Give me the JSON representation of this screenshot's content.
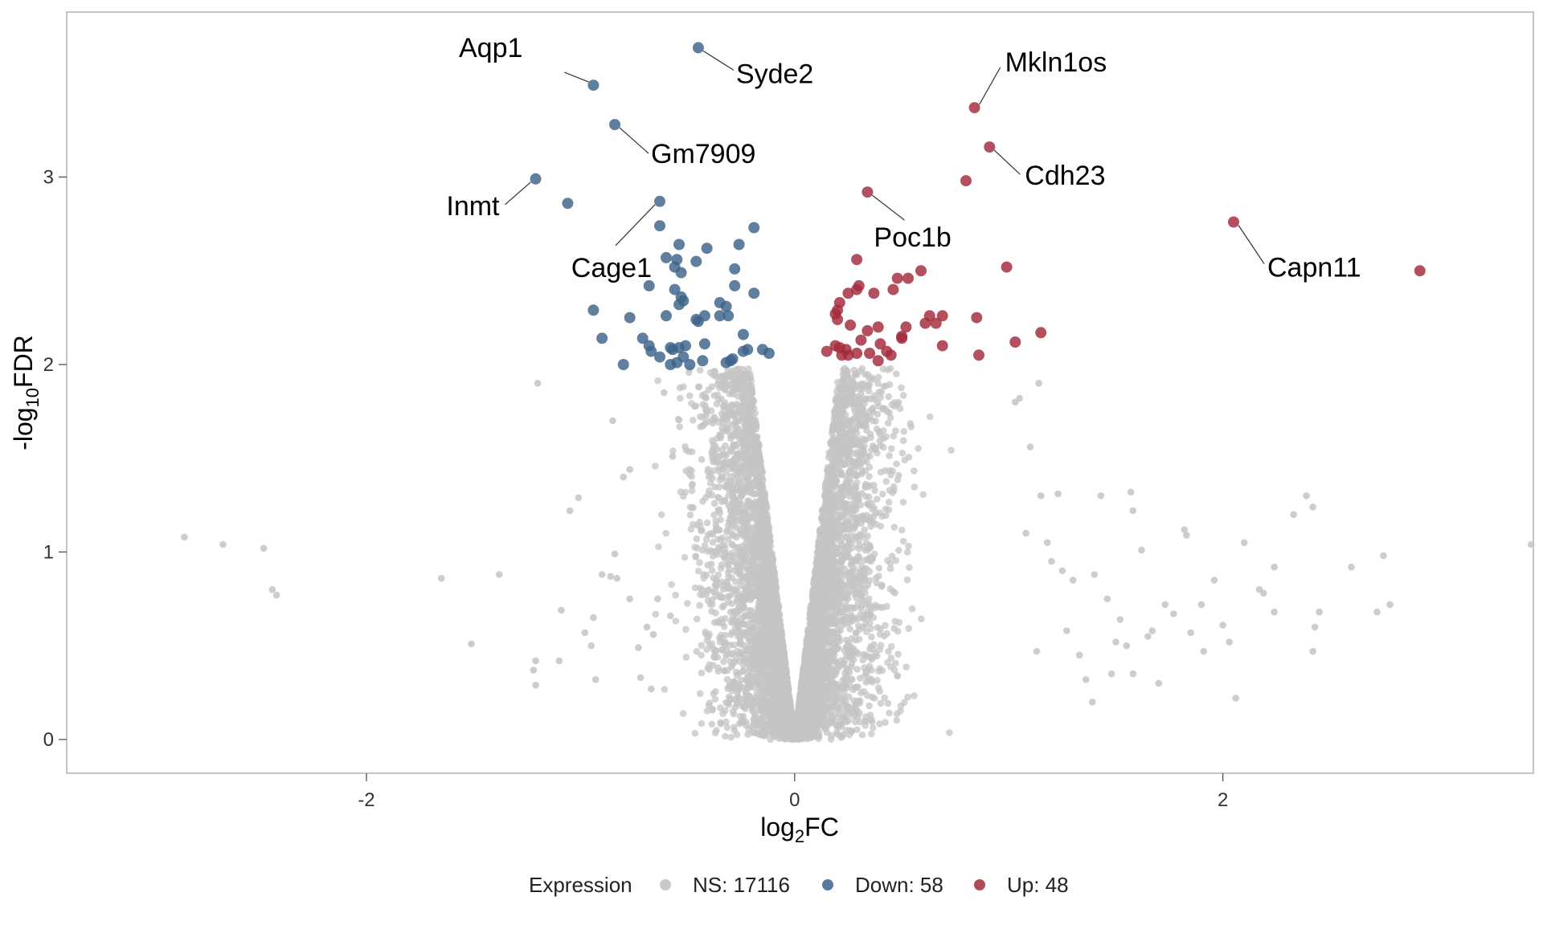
{
  "chart_data": {
    "type": "scatter",
    "title": "",
    "xlabel": "log2FC",
    "ylabel": "-log10FDR",
    "xlim": [
      -3.4,
      3.45
    ],
    "ylim": [
      -0.18,
      3.88
    ],
    "x_ticks": [
      -2,
      0,
      2
    ],
    "x_tick_labels": [
      "-2",
      "0",
      "2"
    ],
    "y_ticks": [
      0,
      1,
      2,
      3
    ],
    "y_tick_labels": [
      "0",
      "1",
      "2",
      "3"
    ],
    "grid": false,
    "legend": {
      "title": "Expression",
      "placement": "bottom",
      "entries": [
        {
          "key": "ns",
          "label": "NS: 17116",
          "color": "#c0c0c0"
        },
        {
          "key": "down",
          "label": "Down: 58",
          "color": "#3d6389"
        },
        {
          "key": "up",
          "label": "Up: 48",
          "color": "#a32a3a"
        }
      ]
    },
    "series": [
      {
        "name": "Down",
        "color": "#3d6389",
        "points": [
          [
            -0.94,
            3.49
          ],
          [
            -0.45,
            3.69
          ],
          [
            -0.84,
            3.28
          ],
          [
            -1.21,
            2.99
          ],
          [
            -1.06,
            2.86
          ],
          [
            -0.63,
            2.87
          ],
          [
            -0.63,
            2.74
          ],
          [
            -0.19,
            2.73
          ],
          [
            -0.54,
            2.64
          ],
          [
            -0.41,
            2.62
          ],
          [
            -0.26,
            2.64
          ],
          [
            -0.6,
            2.57
          ],
          [
            -0.55,
            2.56
          ],
          [
            -0.46,
            2.55
          ],
          [
            -0.56,
            2.52
          ],
          [
            -0.28,
            2.51
          ],
          [
            -0.53,
            2.49
          ],
          [
            -0.68,
            2.42
          ],
          [
            -0.28,
            2.42
          ],
          [
            -0.56,
            2.4
          ],
          [
            -0.19,
            2.38
          ],
          [
            -0.53,
            2.36
          ],
          [
            -0.52,
            2.34
          ],
          [
            -0.35,
            2.33
          ],
          [
            -0.32,
            2.31
          ],
          [
            -0.54,
            2.32
          ],
          [
            -0.94,
            2.29
          ],
          [
            -0.6,
            2.26
          ],
          [
            -0.42,
            2.26
          ],
          [
            -0.35,
            2.26
          ],
          [
            -0.31,
            2.26
          ],
          [
            -0.46,
            2.24
          ],
          [
            -0.45,
            2.23
          ],
          [
            -0.77,
            2.25
          ],
          [
            -0.24,
            2.16
          ],
          [
            -0.9,
            2.14
          ],
          [
            -0.71,
            2.14
          ],
          [
            -0.42,
            2.11
          ],
          [
            -0.58,
            2.09
          ],
          [
            -0.54,
            2.09
          ],
          [
            -0.68,
            2.1
          ],
          [
            -0.67,
            2.07
          ],
          [
            -0.57,
            2.08
          ],
          [
            -0.51,
            2.1
          ],
          [
            -0.22,
            2.08
          ],
          [
            -0.24,
            2.07
          ],
          [
            -0.15,
            2.08
          ],
          [
            -0.12,
            2.06
          ],
          [
            -0.63,
            2.04
          ],
          [
            -0.52,
            2.04
          ],
          [
            -0.8,
            2.0
          ],
          [
            -0.58,
            2.0
          ],
          [
            -0.49,
            2.0
          ],
          [
            -0.55,
            2.01
          ],
          [
            -0.43,
            2.02
          ],
          [
            -0.32,
            2.01
          ],
          [
            -0.3,
            2.02
          ],
          [
            -0.29,
            2.03
          ]
        ]
      },
      {
        "name": "Up",
        "color": "#a32a3a",
        "points": [
          [
            0.84,
            3.37
          ],
          [
            0.91,
            3.16
          ],
          [
            0.8,
            2.98
          ],
          [
            0.34,
            2.92
          ],
          [
            2.05,
            2.76
          ],
          [
            2.92,
            2.5
          ],
          [
            0.99,
            2.52
          ],
          [
            0.29,
            2.56
          ],
          [
            0.59,
            2.5
          ],
          [
            0.48,
            2.46
          ],
          [
            0.53,
            2.46
          ],
          [
            0.3,
            2.42
          ],
          [
            0.25,
            2.38
          ],
          [
            0.29,
            2.4
          ],
          [
            0.37,
            2.38
          ],
          [
            0.46,
            2.4
          ],
          [
            0.21,
            2.33
          ],
          [
            0.2,
            2.29
          ],
          [
            0.19,
            2.27
          ],
          [
            0.2,
            2.24
          ],
          [
            0.63,
            2.26
          ],
          [
            0.69,
            2.26
          ],
          [
            0.66,
            2.22
          ],
          [
            0.85,
            2.25
          ],
          [
            0.61,
            2.22
          ],
          [
            0.26,
            2.21
          ],
          [
            0.39,
            2.2
          ],
          [
            0.52,
            2.2
          ],
          [
            0.34,
            2.18
          ],
          [
            0.5,
            2.15
          ],
          [
            0.5,
            2.14
          ],
          [
            0.31,
            2.13
          ],
          [
            1.15,
            2.17
          ],
          [
            1.03,
            2.12
          ],
          [
            0.4,
            2.11
          ],
          [
            0.69,
            2.1
          ],
          [
            0.24,
            2.08
          ],
          [
            0.21,
            2.09
          ],
          [
            0.15,
            2.07
          ],
          [
            0.43,
            2.07
          ],
          [
            0.29,
            2.06
          ],
          [
            0.35,
            2.06
          ],
          [
            0.22,
            2.05
          ],
          [
            0.25,
            2.05
          ],
          [
            0.45,
            2.05
          ],
          [
            0.39,
            2.02
          ],
          [
            0.19,
            2.1
          ],
          [
            0.86,
            2.05
          ]
        ]
      }
    ],
    "ns_sample": [
      [
        -2.85,
        1.08
      ],
      [
        -2.67,
        1.04
      ],
      [
        -2.48,
        1.02
      ],
      [
        -2.44,
        0.8
      ],
      [
        -2.42,
        0.77
      ],
      [
        -1.65,
        0.86
      ],
      [
        -1.38,
        0.88
      ],
      [
        -1.51,
        0.51
      ],
      [
        -1.2,
        1.9
      ],
      [
        -1.22,
        0.37
      ],
      [
        -1.21,
        0.42
      ],
      [
        -1.21,
        0.29
      ],
      [
        -1.1,
        0.42
      ],
      [
        -1.09,
        0.69
      ],
      [
        -1.05,
        1.22
      ],
      [
        -1.01,
        1.29
      ],
      [
        -0.98,
        0.57
      ],
      [
        -0.94,
        0.65
      ],
      [
        -0.95,
        0.5
      ],
      [
        -0.93,
        0.32
      ],
      [
        -0.9,
        0.88
      ],
      [
        -0.86,
        0.87
      ],
      [
        -0.84,
        0.99
      ],
      [
        -0.83,
        0.86
      ],
      [
        -0.85,
        1.7
      ],
      [
        -0.8,
        1.4
      ],
      [
        -0.77,
        1.44
      ],
      [
        -0.77,
        0.75
      ],
      [
        -0.73,
        0.49
      ],
      [
        -0.72,
        0.33
      ],
      [
        -0.69,
        0.6
      ],
      [
        -0.67,
        0.27
      ],
      [
        -0.66,
        0.56
      ],
      [
        -0.64,
        0.75
      ],
      [
        -0.61,
        1.85
      ],
      [
        -0.58,
        0.66
      ],
      [
        -0.57,
        1.51
      ],
      [
        1.14,
        1.9
      ],
      [
        1.05,
        1.82
      ],
      [
        1.03,
        1.8
      ],
      [
        1.15,
        1.3
      ],
      [
        1.18,
        1.05
      ],
      [
        1.23,
        1.31
      ],
      [
        1.25,
        0.9
      ],
      [
        1.3,
        0.85
      ],
      [
        1.33,
        0.45
      ],
      [
        1.36,
        0.32
      ],
      [
        1.39,
        0.2
      ],
      [
        1.4,
        0.88
      ],
      [
        1.43,
        1.3
      ],
      [
        1.46,
        0.75
      ],
      [
        1.5,
        0.52
      ],
      [
        1.52,
        0.64
      ],
      [
        1.55,
        0.5
      ],
      [
        1.58,
        0.35
      ],
      [
        1.57,
        1.32
      ],
      [
        1.58,
        1.22
      ],
      [
        1.62,
        1.01
      ],
      [
        1.67,
        0.58
      ],
      [
        1.7,
        0.3
      ],
      [
        1.73,
        0.72
      ],
      [
        1.77,
        0.67
      ],
      [
        1.82,
        1.12
      ],
      [
        1.83,
        1.09
      ],
      [
        1.85,
        0.57
      ],
      [
        1.91,
        0.47
      ],
      [
        1.96,
        0.85
      ],
      [
        2.0,
        0.61
      ],
      [
        2.03,
        0.52
      ],
      [
        2.06,
        0.22
      ],
      [
        2.1,
        1.05
      ],
      [
        2.17,
        0.8
      ],
      [
        2.19,
        0.78
      ],
      [
        2.24,
        0.68
      ],
      [
        2.33,
        1.2
      ],
      [
        2.39,
        1.3
      ],
      [
        2.42,
        1.24
      ],
      [
        2.42,
        0.47
      ],
      [
        2.43,
        0.6
      ],
      [
        2.45,
        0.68
      ],
      [
        2.6,
        0.92
      ],
      [
        2.72,
        0.68
      ],
      [
        2.75,
        0.98
      ],
      [
        2.78,
        0.72
      ],
      [
        3.44,
        1.04
      ],
      [
        1.2,
        0.95
      ],
      [
        1.48,
        0.35
      ],
      [
        1.9,
        0.72
      ],
      [
        2.24,
        0.92
      ],
      [
        1.65,
        0.55
      ],
      [
        1.27,
        0.58
      ],
      [
        1.13,
        0.47
      ],
      [
        1.1,
        1.56
      ],
      [
        1.08,
        1.1
      ]
    ],
    "annotations": [
      {
        "label": "Aqp1",
        "x": -0.94,
        "y": 3.49
      },
      {
        "label": "Syde2",
        "x": -0.45,
        "y": 3.69
      },
      {
        "label": "Gm7909",
        "x": -0.84,
        "y": 3.28
      },
      {
        "label": "Inmt",
        "x": -1.21,
        "y": 2.99
      },
      {
        "label": "Cage1",
        "x": -0.63,
        "y": 2.87
      },
      {
        "label": "Mkln1os",
        "x": 0.84,
        "y": 3.37
      },
      {
        "label": "Cdh23",
        "x": 0.91,
        "y": 3.16
      },
      {
        "label": "Poc1b",
        "x": 0.34,
        "y": 2.92
      },
      {
        "label": "Capn11",
        "x": 2.05,
        "y": 2.76
      }
    ]
  }
}
